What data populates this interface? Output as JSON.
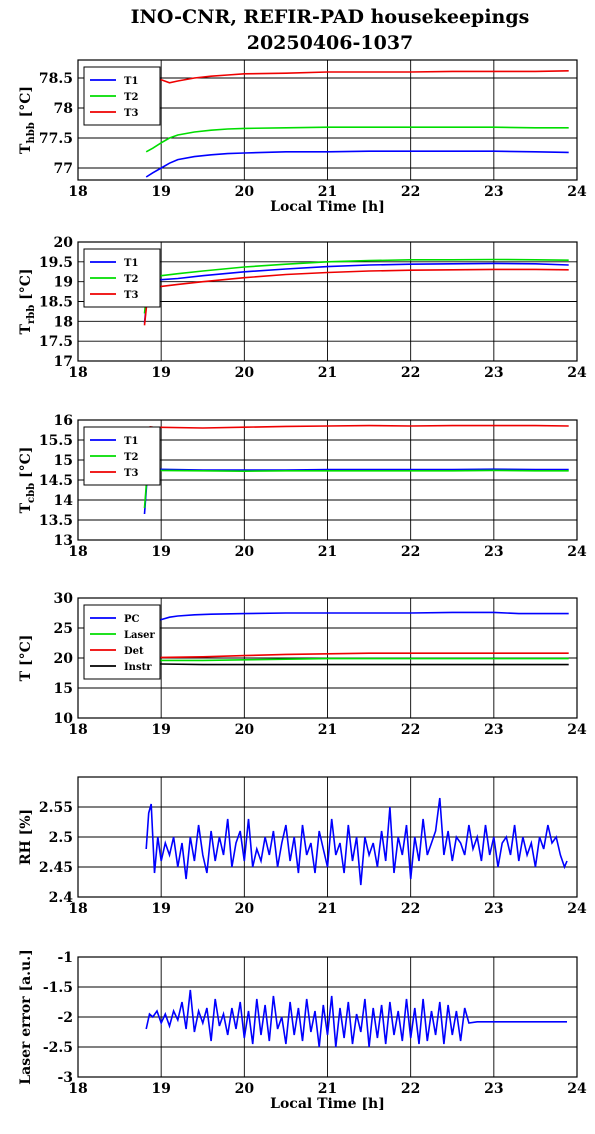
{
  "figure": {
    "title_line1": "INO-CNR, REFIR-PAD housekeepings",
    "title_line2": "20250406-1037"
  },
  "chart_data": [
    {
      "type": "line",
      "ylabel_main": "T",
      "ylabel_sub": "hbb",
      "ylabel_unit": " [°C]",
      "xlabel": "Local Time [h]",
      "xlim": [
        18,
        24
      ],
      "ylim": [
        76.8,
        78.8
      ],
      "x_ticks": [
        "18",
        "19",
        "20",
        "21",
        "22",
        "23",
        "24"
      ],
      "y_ticks": [
        77,
        77.5,
        78,
        78.5
      ],
      "y_tick_labels": [
        "77",
        "77.5",
        "78",
        "78.5"
      ],
      "grid": true,
      "legend": "top-left",
      "series": [
        {
          "name": "T1",
          "color": "#0000ff",
          "x": [
            18.82,
            18.9,
            19.0,
            19.1,
            19.2,
            19.4,
            19.6,
            19.8,
            20.0,
            20.5,
            21.0,
            21.5,
            22.0,
            22.5,
            23.0,
            23.5,
            23.9
          ],
          "y": [
            76.85,
            76.92,
            77.0,
            77.08,
            77.14,
            77.19,
            77.22,
            77.24,
            77.25,
            77.27,
            77.27,
            77.28,
            77.28,
            77.28,
            77.28,
            77.27,
            77.26
          ]
        },
        {
          "name": "T2",
          "color": "#00dd00",
          "x": [
            18.82,
            18.9,
            19.0,
            19.1,
            19.2,
            19.4,
            19.6,
            19.8,
            20.0,
            20.5,
            21.0,
            21.5,
            22.0,
            22.5,
            23.0,
            23.5,
            23.9
          ],
          "y": [
            77.27,
            77.33,
            77.42,
            77.5,
            77.55,
            77.6,
            77.63,
            77.65,
            77.66,
            77.67,
            77.68,
            77.68,
            77.68,
            77.68,
            77.68,
            77.67,
            77.67
          ]
        },
        {
          "name": "T3",
          "color": "#ee0000",
          "x": [
            18.82,
            18.9,
            19.0,
            19.1,
            19.2,
            19.4,
            19.6,
            19.8,
            20.0,
            20.5,
            21.0,
            21.5,
            22.0,
            22.5,
            23.0,
            23.5,
            23.9
          ],
          "y": [
            78.52,
            78.5,
            78.47,
            78.42,
            78.45,
            78.5,
            78.53,
            78.55,
            78.57,
            78.58,
            78.6,
            78.6,
            78.6,
            78.61,
            78.61,
            78.61,
            78.62
          ]
        }
      ]
    },
    {
      "type": "line",
      "ylabel_main": "T",
      "ylabel_sub": "rbb",
      "ylabel_unit": " [°C]",
      "xlabel": "",
      "xlim": [
        18,
        24
      ],
      "ylim": [
        17,
        20
      ],
      "x_ticks": [
        "18",
        "19",
        "20",
        "21",
        "22",
        "23",
        "24"
      ],
      "y_ticks": [
        17,
        17.5,
        18,
        18.5,
        19,
        19.5,
        20
      ],
      "y_tick_labels": [
        "17",
        "17.5",
        "18",
        "18.5",
        "19",
        "19.5",
        "20"
      ],
      "grid": true,
      "legend": "top-left",
      "series": [
        {
          "name": "T1",
          "color": "#0000ff",
          "x": [
            18.8,
            18.83,
            18.86,
            18.9,
            19.0,
            19.2,
            19.5,
            20.0,
            20.5,
            21.0,
            21.5,
            22.0,
            22.5,
            23.0,
            23.5,
            23.9
          ],
          "y": [
            17.95,
            18.6,
            19.0,
            19.05,
            19.05,
            19.08,
            19.15,
            19.25,
            19.32,
            19.38,
            19.42,
            19.44,
            19.45,
            19.46,
            19.45,
            19.42
          ]
        },
        {
          "name": "T2",
          "color": "#00dd00",
          "x": [
            18.8,
            18.83,
            18.86,
            18.9,
            19.0,
            19.2,
            19.5,
            20.0,
            20.5,
            21.0,
            21.5,
            22.0,
            22.5,
            23.0,
            23.5,
            23.9
          ],
          "y": [
            18.2,
            18.8,
            19.12,
            19.15,
            19.15,
            19.2,
            19.27,
            19.37,
            19.44,
            19.5,
            19.53,
            19.55,
            19.55,
            19.56,
            19.55,
            19.54
          ]
        },
        {
          "name": "T3",
          "color": "#ee0000",
          "x": [
            18.8,
            18.83,
            18.86,
            18.9,
            19.0,
            19.2,
            19.5,
            20.0,
            20.5,
            21.0,
            21.5,
            22.0,
            22.5,
            23.0,
            23.5,
            23.9
          ],
          "y": [
            17.9,
            18.5,
            18.85,
            18.88,
            18.88,
            18.93,
            19.0,
            19.1,
            19.18,
            19.23,
            19.27,
            19.29,
            19.3,
            19.31,
            19.31,
            19.3
          ]
        }
      ]
    },
    {
      "type": "line",
      "ylabel_main": "T",
      "ylabel_sub": "cbb",
      "ylabel_unit": " [°C]",
      "xlabel": "",
      "xlim": [
        18,
        24
      ],
      "ylim": [
        13,
        16
      ],
      "x_ticks": [
        "18",
        "19",
        "20",
        "21",
        "22",
        "23",
        "24"
      ],
      "y_ticks": [
        13,
        13.5,
        14,
        14.5,
        15,
        15.5,
        16
      ],
      "y_tick_labels": [
        "13",
        "13.5",
        "14",
        "14.5",
        "15",
        "15.5",
        "16"
      ],
      "grid": true,
      "legend": "top-left",
      "series": [
        {
          "name": "T1",
          "color": "#0000ff",
          "x": [
            18.8,
            18.83,
            18.86,
            18.9,
            19.5,
            20.0,
            20.5,
            21.0,
            21.5,
            22.0,
            22.5,
            23.0,
            23.5,
            23.9
          ],
          "y": [
            13.65,
            14.5,
            14.78,
            14.77,
            14.75,
            14.75,
            14.75,
            14.76,
            14.76,
            14.76,
            14.76,
            14.77,
            14.76,
            14.76
          ]
        },
        {
          "name": "T2",
          "color": "#00dd00",
          "x": [
            18.8,
            18.83,
            18.86,
            18.9,
            19.5,
            20.0,
            20.5,
            21.0,
            21.5,
            22.0,
            22.5,
            23.0,
            23.5,
            23.9
          ],
          "y": [
            13.8,
            14.6,
            14.75,
            14.74,
            14.73,
            14.72,
            14.73,
            14.73,
            14.73,
            14.73,
            14.73,
            14.74,
            14.73,
            14.73
          ]
        },
        {
          "name": "T3",
          "color": "#ee0000",
          "x": [
            18.86,
            18.9,
            19.5,
            20.0,
            20.5,
            21.0,
            21.5,
            22.0,
            22.5,
            23.0,
            23.5,
            23.9
          ],
          "y": [
            15.83,
            15.82,
            15.8,
            15.82,
            15.84,
            15.85,
            15.86,
            15.85,
            15.86,
            15.86,
            15.86,
            15.85
          ]
        }
      ]
    },
    {
      "type": "line",
      "ylabel_main": "T",
      "ylabel_sub": "",
      "ylabel_unit": " [°C]",
      "xlabel": "",
      "xlim": [
        18,
        24
      ],
      "ylim": [
        10,
        30
      ],
      "x_ticks": [
        "18",
        "19",
        "20",
        "21",
        "22",
        "23",
        "24"
      ],
      "y_ticks": [
        10,
        15,
        20,
        25,
        30
      ],
      "y_tick_labels": [
        "10",
        "15",
        "20",
        "25",
        "30"
      ],
      "grid": true,
      "legend": "top-left",
      "series": [
        {
          "name": "PC",
          "color": "#0000ff",
          "x": [
            18.82,
            18.9,
            19.0,
            19.1,
            19.2,
            19.4,
            19.6,
            20.0,
            20.5,
            21.0,
            21.5,
            22.0,
            22.5,
            23.0,
            23.3,
            23.6,
            23.9
          ],
          "y": [
            25.0,
            25.8,
            26.4,
            26.8,
            27.0,
            27.2,
            27.3,
            27.4,
            27.5,
            27.5,
            27.5,
            27.5,
            27.6,
            27.6,
            27.4,
            27.4,
            27.4
          ]
        },
        {
          "name": "Laser",
          "color": "#00dd00",
          "x": [
            18.82,
            19.0,
            19.5,
            20.0,
            20.5,
            21.0,
            21.5,
            22.0,
            22.5,
            23.0,
            23.5,
            23.9
          ],
          "y": [
            19.6,
            19.6,
            19.6,
            19.7,
            19.8,
            19.9,
            19.9,
            19.9,
            19.9,
            19.9,
            19.9,
            19.9
          ]
        },
        {
          "name": "Det",
          "color": "#ee0000",
          "x": [
            18.82,
            19.0,
            19.5,
            20.0,
            20.5,
            21.0,
            21.5,
            22.0,
            22.5,
            23.0,
            23.5,
            23.9
          ],
          "y": [
            20.0,
            20.1,
            20.2,
            20.4,
            20.6,
            20.7,
            20.8,
            20.8,
            20.8,
            20.8,
            20.8,
            20.8
          ]
        },
        {
          "name": "Instr",
          "color": "#000000",
          "x": [
            18.82,
            19.0,
            19.5,
            20.0,
            20.5,
            21.0,
            21.5,
            22.0,
            22.5,
            23.0,
            23.5,
            23.9
          ],
          "y": [
            19.0,
            19.0,
            18.9,
            18.9,
            18.9,
            18.9,
            18.9,
            18.9,
            18.9,
            18.9,
            18.9,
            18.9
          ]
        }
      ]
    },
    {
      "type": "line",
      "ylabel_main": "RH [%]",
      "ylabel_sub": "",
      "ylabel_unit": "",
      "xlabel": "",
      "xlim": [
        18,
        24
      ],
      "ylim": [
        2.4,
        2.6
      ],
      "x_ticks": [
        "18",
        "19",
        "20",
        "21",
        "22",
        "23",
        "24"
      ],
      "y_ticks": [
        2.4,
        2.45,
        2.5,
        2.55
      ],
      "y_tick_labels": [
        "2.4",
        "2.45",
        "2.5",
        "2.55"
      ],
      "grid": true,
      "legend": "none",
      "series": [
        {
          "name": "",
          "color": "#0000ff",
          "x": [
            18.82,
            18.85,
            18.88,
            18.92,
            18.96,
            19.0,
            19.05,
            19.1,
            19.15,
            19.2,
            19.25,
            19.3,
            19.35,
            19.4,
            19.45,
            19.5,
            19.55,
            19.6,
            19.65,
            19.7,
            19.75,
            19.8,
            19.85,
            19.9,
            19.95,
            20.0,
            20.05,
            20.1,
            20.15,
            20.2,
            20.25,
            20.3,
            20.35,
            20.4,
            20.45,
            20.5,
            20.55,
            20.6,
            20.65,
            20.7,
            20.75,
            20.8,
            20.85,
            20.9,
            20.95,
            21.0,
            21.05,
            21.1,
            21.15,
            21.2,
            21.25,
            21.3,
            21.35,
            21.4,
            21.45,
            21.5,
            21.55,
            21.6,
            21.65,
            21.7,
            21.75,
            21.8,
            21.85,
            21.9,
            21.95,
            22.0,
            22.05,
            22.1,
            22.15,
            22.2,
            22.25,
            22.3,
            22.35,
            22.4,
            22.45,
            22.5,
            22.55,
            22.6,
            22.65,
            22.7,
            22.75,
            22.8,
            22.85,
            22.9,
            22.95,
            23.0,
            23.05,
            23.1,
            23.15,
            23.2,
            23.25,
            23.3,
            23.35,
            23.4,
            23.45,
            23.5,
            23.55,
            23.6,
            23.65,
            23.7,
            23.75,
            23.8,
            23.85,
            23.88
          ],
          "y": [
            2.48,
            2.54,
            2.555,
            2.44,
            2.5,
            2.46,
            2.49,
            2.47,
            2.5,
            2.45,
            2.49,
            2.43,
            2.5,
            2.46,
            2.52,
            2.47,
            2.44,
            2.51,
            2.46,
            2.5,
            2.47,
            2.53,
            2.45,
            2.49,
            2.51,
            2.46,
            2.53,
            2.45,
            2.48,
            2.46,
            2.5,
            2.47,
            2.51,
            2.45,
            2.49,
            2.52,
            2.46,
            2.5,
            2.44,
            2.52,
            2.47,
            2.49,
            2.44,
            2.51,
            2.48,
            2.45,
            2.53,
            2.47,
            2.49,
            2.44,
            2.52,
            2.46,
            2.5,
            2.42,
            2.5,
            2.47,
            2.49,
            2.45,
            2.51,
            2.46,
            2.55,
            2.44,
            2.5,
            2.47,
            2.52,
            2.43,
            2.5,
            2.46,
            2.53,
            2.47,
            2.49,
            2.51,
            2.565,
            2.47,
            2.51,
            2.46,
            2.5,
            2.49,
            2.47,
            2.52,
            2.48,
            2.5,
            2.46,
            2.52,
            2.47,
            2.5,
            2.45,
            2.49,
            2.5,
            2.47,
            2.52,
            2.46,
            2.5,
            2.47,
            2.49,
            2.45,
            2.5,
            2.48,
            2.52,
            2.49,
            2.5,
            2.47,
            2.45,
            2.46
          ]
        }
      ]
    },
    {
      "type": "line",
      "ylabel_main": "Laser error [a.u.]",
      "ylabel_sub": "",
      "ylabel_unit": "",
      "xlabel": "Local Time [h]",
      "xlim": [
        18,
        24
      ],
      "ylim": [
        -3,
        -1
      ],
      "x_ticks": [
        "18",
        "19",
        "20",
        "21",
        "22",
        "23",
        "24"
      ],
      "y_ticks": [
        -3,
        -2.5,
        -2,
        -1.5,
        -1
      ],
      "y_tick_labels": [
        "-3",
        "-2.5",
        "-2",
        "-1.5",
        "-1"
      ],
      "grid": true,
      "legend": "none",
      "series": [
        {
          "name": "",
          "color": "#0000ff",
          "x": [
            18.82,
            18.86,
            18.9,
            18.95,
            19.0,
            19.05,
            19.1,
            19.15,
            19.2,
            19.25,
            19.3,
            19.35,
            19.4,
            19.45,
            19.5,
            19.55,
            19.6,
            19.65,
            19.7,
            19.75,
            19.8,
            19.85,
            19.9,
            19.95,
            20.0,
            20.05,
            20.1,
            20.15,
            20.2,
            20.25,
            20.3,
            20.35,
            20.4,
            20.45,
            20.5,
            20.55,
            20.6,
            20.65,
            20.7,
            20.75,
            20.8,
            20.85,
            20.9,
            20.95,
            21.0,
            21.05,
            21.1,
            21.15,
            21.2,
            21.25,
            21.3,
            21.35,
            21.4,
            21.45,
            21.5,
            21.55,
            21.6,
            21.65,
            21.7,
            21.75,
            21.8,
            21.85,
            21.9,
            21.95,
            22.0,
            22.05,
            22.1,
            22.15,
            22.2,
            22.25,
            22.3,
            22.35,
            22.4,
            22.45,
            22.5,
            22.55,
            22.6,
            22.65,
            22.7,
            22.8,
            23.0,
            23.2,
            23.4,
            23.6,
            23.88
          ],
          "y": [
            -2.2,
            -1.95,
            -2.0,
            -1.9,
            -2.1,
            -1.95,
            -2.15,
            -1.9,
            -2.05,
            -1.75,
            -2.2,
            -1.55,
            -2.25,
            -1.9,
            -2.1,
            -1.85,
            -2.4,
            -1.7,
            -2.15,
            -1.95,
            -2.3,
            -1.85,
            -2.2,
            -1.75,
            -2.35,
            -1.9,
            -2.45,
            -1.7,
            -2.3,
            -1.8,
            -2.4,
            -1.65,
            -2.2,
            -2.0,
            -2.45,
            -1.75,
            -2.3,
            -1.85,
            -2.4,
            -1.7,
            -2.25,
            -1.9,
            -2.5,
            -1.8,
            -2.3,
            -1.65,
            -2.5,
            -1.85,
            -2.35,
            -1.75,
            -2.45,
            -1.95,
            -2.25,
            -1.7,
            -2.5,
            -1.85,
            -2.35,
            -1.8,
            -2.45,
            -1.75,
            -2.3,
            -1.9,
            -2.4,
            -1.7,
            -2.35,
            -1.85,
            -2.45,
            -1.7,
            -2.4,
            -1.9,
            -2.3,
            -1.75,
            -2.45,
            -1.8,
            -2.3,
            -1.9,
            -2.4,
            -1.85,
            -2.1,
            -2.08,
            -2.08,
            -2.08,
            -2.08,
            -2.08,
            -2.08
          ]
        }
      ]
    }
  ]
}
